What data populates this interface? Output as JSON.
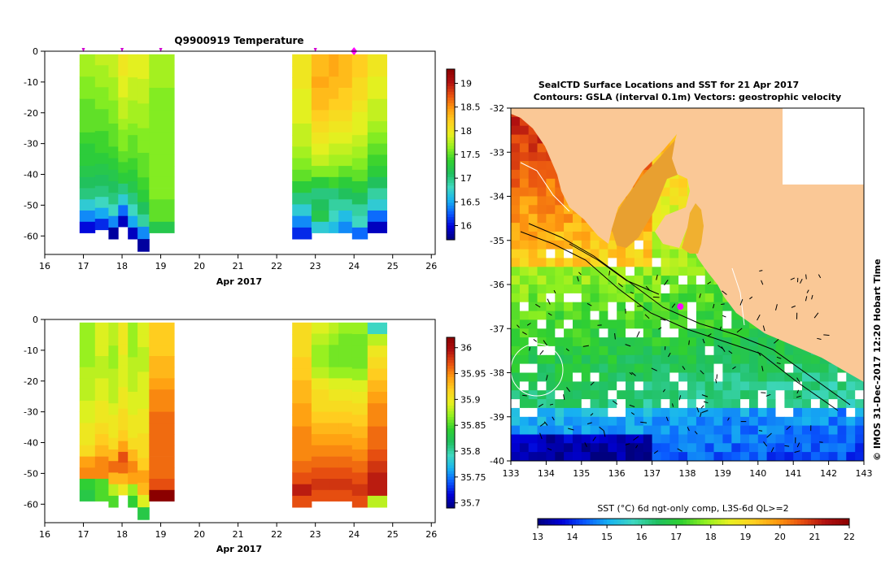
{
  "colors": {
    "sst_stops": [
      "#00007f",
      "#0000d8",
      "#0a5cff",
      "#18b4f0",
      "#3fd8c0",
      "#20c060",
      "#30d030",
      "#90f020",
      "#e8f020",
      "#ffd020",
      "#ff9a10",
      "#e85010",
      "#b01010",
      "#8b0000"
    ],
    "land": "#fac896",
    "missing": "#ffffff",
    "marker_arrow": "#d000d0",
    "marker_diamond": "#ff00ff"
  },
  "temp_panel": {
    "title": "Q9900919  Temperature",
    "month_label": "Apr 2017",
    "colorbar_ticks": [
      "19",
      "18.5",
      "18",
      "17.5",
      "17",
      "16.5",
      "16"
    ]
  },
  "sal_panel": {
    "month_label": "Apr 2017",
    "colorbar_ticks": [
      "36",
      "35.95",
      "35.9",
      "35.85",
      "35.8",
      "35.75",
      "35.7"
    ]
  },
  "map_panel": {
    "title_line1": "SealCTD Surface Locations and SST for 21 Apr 2017",
    "title_line2": "Contours: GSLA (interval 0.1m) Vectors: geostrophic velocity",
    "side_label": "© IMOS 31-Dec-2017 12:20 Hobart Time",
    "colorbar_title": "SST (°C) 6d ngt-only comp, L3S-6d QL>=2",
    "colorbar_ticks": [
      "13",
      "14",
      "15",
      "16",
      "17",
      "18",
      "19",
      "20",
      "21",
      "22"
    ]
  },
  "chart_data": [
    {
      "type": "heatmap",
      "title": "Q9900919  Temperature",
      "xlabel": "Apr 2017",
      "ylabel": "",
      "x_ticks": [
        "16",
        "17",
        "18",
        "19",
        "20",
        "21",
        "22",
        "23",
        "24",
        "25",
        "26"
      ],
      "y_ticks": [
        "0",
        "-10",
        "-20",
        "-30",
        "-40",
        "-50",
        "-60"
      ],
      "xlim": [
        16,
        26.1
      ],
      "ylim": [
        -66,
        0
      ],
      "colorbar_range": [
        15.7,
        19.3
      ],
      "profile_markers": [
        17,
        18,
        19,
        23,
        24
      ],
      "selected_marker": 24,
      "profiles": [
        {
          "t0": 16.9,
          "t1": 17.3,
          "values": [
            17.7,
            17.7,
            17.6,
            17.6,
            17.5,
            17.5,
            17.5,
            17.4,
            17.3,
            17.3,
            17.2,
            17.1,
            17.0,
            16.7,
            16.4,
            16.0
          ],
          "bottom": -59
        },
        {
          "t0": 17.3,
          "t1": 17.65,
          "values": [
            17.8,
            17.7,
            17.7,
            17.6,
            17.6,
            17.5,
            17.5,
            17.4,
            17.4,
            17.3,
            17.2,
            17.1,
            17.0,
            16.8,
            16.5,
            16.1
          ],
          "bottom": -58
        },
        {
          "t0": 17.65,
          "t1": 17.9,
          "values": [
            17.8,
            17.8,
            17.7,
            17.7,
            17.6,
            17.6,
            17.5,
            17.5,
            17.4,
            17.3,
            17.2,
            17.1,
            17.0,
            16.8,
            16.4,
            15.8
          ],
          "bottom": -61
        },
        {
          "t0": 17.9,
          "t1": 18.15,
          "values": [
            18.0,
            18.0,
            17.9,
            17.9,
            17.8,
            17.8,
            17.7,
            17.6,
            17.6,
            17.5,
            17.4,
            17.3,
            17.0,
            16.7,
            16.3,
            15.9
          ],
          "bottom": -57
        },
        {
          "t0": 18.15,
          "t1": 18.4,
          "values": [
            17.9,
            17.9,
            17.8,
            17.8,
            17.7,
            17.7,
            17.6,
            17.5,
            17.5,
            17.4,
            17.3,
            17.2,
            17.0,
            16.8,
            16.5,
            15.9
          ],
          "bottom": -61
        },
        {
          "t0": 18.4,
          "t1": 18.7,
          "values": [
            17.9,
            17.9,
            17.8,
            17.8,
            17.7,
            17.7,
            17.6,
            17.6,
            17.5,
            17.5,
            17.4,
            17.3,
            17.1,
            16.9,
            16.4,
            15.8
          ],
          "bottom": -65
        },
        {
          "t0": 18.7,
          "t1": 19.35,
          "values": [
            17.7,
            17.7,
            17.7,
            17.6,
            17.6,
            17.6,
            17.6,
            17.6,
            17.6,
            17.6,
            17.6,
            17.6,
            17.6,
            17.5,
            17.5,
            17.2
          ],
          "bottom": -59
        },
        {
          "t0": 22.4,
          "t1": 22.9,
          "values": [
            18.0,
            18.0,
            18.0,
            17.9,
            17.9,
            17.9,
            17.8,
            17.8,
            17.7,
            17.6,
            17.5,
            17.3,
            17.0,
            16.7,
            16.4,
            16.1
          ],
          "bottom": -61
        },
        {
          "t0": 22.9,
          "t1": 23.35,
          "values": [
            18.3,
            18.3,
            18.4,
            18.3,
            18.3,
            18.2,
            18.1,
            18.0,
            17.9,
            17.8,
            17.6,
            17.3,
            17.0,
            17.1,
            17.2,
            16.7
          ],
          "bottom": -59
        },
        {
          "t0": 23.35,
          "t1": 23.6,
          "values": [
            18.4,
            18.4,
            18.3,
            18.3,
            18.2,
            18.1,
            18.0,
            17.9,
            17.8,
            17.7,
            17.6,
            17.4,
            17.0,
            16.9,
            16.8,
            16.6
          ],
          "bottom": -59
        },
        {
          "t0": 23.6,
          "t1": 23.95,
          "values": [
            18.3,
            18.3,
            18.3,
            18.2,
            18.2,
            18.1,
            18.0,
            17.9,
            17.8,
            17.7,
            17.5,
            17.3,
            17.1,
            16.9,
            16.6,
            16.4
          ],
          "bottom": -59
        },
        {
          "t0": 23.95,
          "t1": 24.35,
          "values": [
            18.2,
            18.2,
            18.1,
            18.1,
            18.0,
            17.9,
            17.9,
            17.8,
            17.7,
            17.6,
            17.5,
            17.3,
            17.1,
            16.9,
            16.8,
            16.3
          ],
          "bottom": -61
        },
        {
          "t0": 24.35,
          "t1": 24.85,
          "values": [
            18.0,
            18.0,
            17.9,
            17.9,
            17.8,
            17.8,
            17.7,
            17.6,
            17.5,
            17.4,
            17.3,
            17.1,
            16.9,
            16.7,
            16.3,
            15.9
          ],
          "bottom": -59
        }
      ]
    },
    {
      "type": "heatmap",
      "title": "",
      "xlabel": "Apr 2017",
      "ylabel": "",
      "x_ticks": [
        "16",
        "17",
        "18",
        "19",
        "20",
        "21",
        "22",
        "23",
        "24",
        "25",
        "26"
      ],
      "y_ticks": [
        "0",
        "-10",
        "-20",
        "-30",
        "-40",
        "-50",
        "-60"
      ],
      "xlim": [
        16,
        26.1
      ],
      "ylim": [
        -66,
        0
      ],
      "colorbar_range": [
        35.69,
        36.02
      ],
      "profiles": [
        {
          "t0": 16.9,
          "t1": 17.3,
          "values": [
            35.87,
            35.87,
            35.87,
            35.87,
            35.88,
            35.88,
            35.88,
            35.89,
            35.89,
            35.9,
            35.9,
            35.91,
            35.94,
            35.95,
            35.84,
            35.83
          ],
          "bottom": -59
        },
        {
          "t0": 17.3,
          "t1": 17.65,
          "values": [
            35.89,
            35.89,
            35.89,
            35.88,
            35.88,
            35.89,
            35.89,
            35.9,
            35.9,
            35.91,
            35.92,
            35.93,
            35.95,
            35.95,
            35.85,
            35.85
          ],
          "bottom": -59
        },
        {
          "t0": 17.65,
          "t1": 17.9,
          "values": [
            35.88,
            35.88,
            35.87,
            35.87,
            35.88,
            35.88,
            35.88,
            35.89,
            35.9,
            35.9,
            35.91,
            35.93,
            35.96,
            35.93,
            35.88,
            35.85
          ],
          "bottom": -61
        },
        {
          "t0": 17.9,
          "t1": 18.15,
          "values": [
            35.9,
            35.9,
            35.9,
            35.89,
            35.89,
            35.89,
            35.9,
            35.9,
            35.91,
            35.91,
            35.92,
            35.94,
            35.97,
            35.96,
            35.93,
            35.9
          ],
          "bottom": -57
        },
        {
          "t0": 18.15,
          "t1": 18.4,
          "values": [
            35.87,
            35.87,
            35.87,
            35.88,
            35.88,
            35.88,
            35.89,
            35.89,
            35.9,
            35.9,
            35.91,
            35.93,
            35.95,
            35.94,
            35.87,
            35.84
          ],
          "bottom": -61
        },
        {
          "t0": 18.4,
          "t1": 18.7,
          "values": [
            35.89,
            35.89,
            35.88,
            35.88,
            35.89,
            35.89,
            35.89,
            35.9,
            35.9,
            35.91,
            35.91,
            35.92,
            35.94,
            35.93,
            35.89,
            35.83
          ],
          "bottom": -65
        },
        {
          "t0": 18.7,
          "t1": 19.35,
          "values": [
            35.92,
            35.92,
            35.92,
            35.93,
            35.93,
            35.94,
            35.95,
            35.95,
            35.96,
            35.96,
            35.96,
            35.96,
            35.96,
            35.96,
            35.97,
            36.02
          ],
          "bottom": -59
        },
        {
          "t0": 22.4,
          "t1": 22.9,
          "values": [
            35.91,
            35.91,
            35.91,
            35.92,
            35.92,
            35.93,
            35.93,
            35.94,
            35.94,
            35.95,
            35.95,
            35.95,
            35.96,
            35.97,
            35.99,
            35.97
          ],
          "bottom": -61
        },
        {
          "t0": 22.9,
          "t1": 23.35,
          "values": [
            35.89,
            35.88,
            35.87,
            35.87,
            35.88,
            35.9,
            35.91,
            35.91,
            35.92,
            35.93,
            35.94,
            35.95,
            35.96,
            35.97,
            35.98,
            35.97
          ],
          "bottom": -59
        },
        {
          "t0": 23.35,
          "t1": 23.6,
          "values": [
            35.88,
            35.87,
            35.86,
            35.86,
            35.87,
            35.89,
            35.9,
            35.91,
            35.92,
            35.93,
            35.94,
            35.95,
            35.96,
            35.97,
            35.98,
            35.97
          ],
          "bottom": -59
        },
        {
          "t0": 23.6,
          "t1": 23.95,
          "values": [
            35.87,
            35.86,
            35.86,
            35.86,
            35.87,
            35.89,
            35.9,
            35.91,
            35.92,
            35.93,
            35.94,
            35.95,
            35.96,
            35.97,
            35.98,
            35.97
          ],
          "bottom": -59
        },
        {
          "t0": 23.95,
          "t1": 24.35,
          "values": [
            35.87,
            35.86,
            35.86,
            35.86,
            35.87,
            35.89,
            35.9,
            35.91,
            35.92,
            35.93,
            35.94,
            35.95,
            35.96,
            35.97,
            35.98,
            35.97
          ],
          "bottom": -61
        },
        {
          "t0": 24.35,
          "t1": 24.85,
          "values": [
            35.79,
            35.88,
            35.9,
            35.91,
            35.92,
            35.93,
            35.94,
            35.95,
            35.95,
            35.96,
            35.96,
            35.97,
            35.98,
            35.99,
            35.99,
            35.88
          ],
          "bottom": -61
        }
      ]
    },
    {
      "type": "heatmap",
      "title": "SealCTD Surface Locations and SST for 21 Apr 2017",
      "subtitle": "Contours: GSLA (interval 0.1m) Vectors: geostrophic velocity",
      "xlabel": "",
      "ylabel": "",
      "x_ticks": [
        "133",
        "134",
        "135",
        "136",
        "137",
        "138",
        "139",
        "140",
        "141",
        "142",
        "143"
      ],
      "y_ticks": [
        "-32",
        "-33",
        "-34",
        "-35",
        "-36",
        "-37",
        "-38",
        "-39",
        "-40"
      ],
      "xlim": [
        133,
        143
      ],
      "ylim": [
        -40,
        -32
      ],
      "colorbar_range": [
        13,
        22
      ],
      "sealctd_location": {
        "lon": 137.8,
        "lat": -36.5
      }
    }
  ]
}
